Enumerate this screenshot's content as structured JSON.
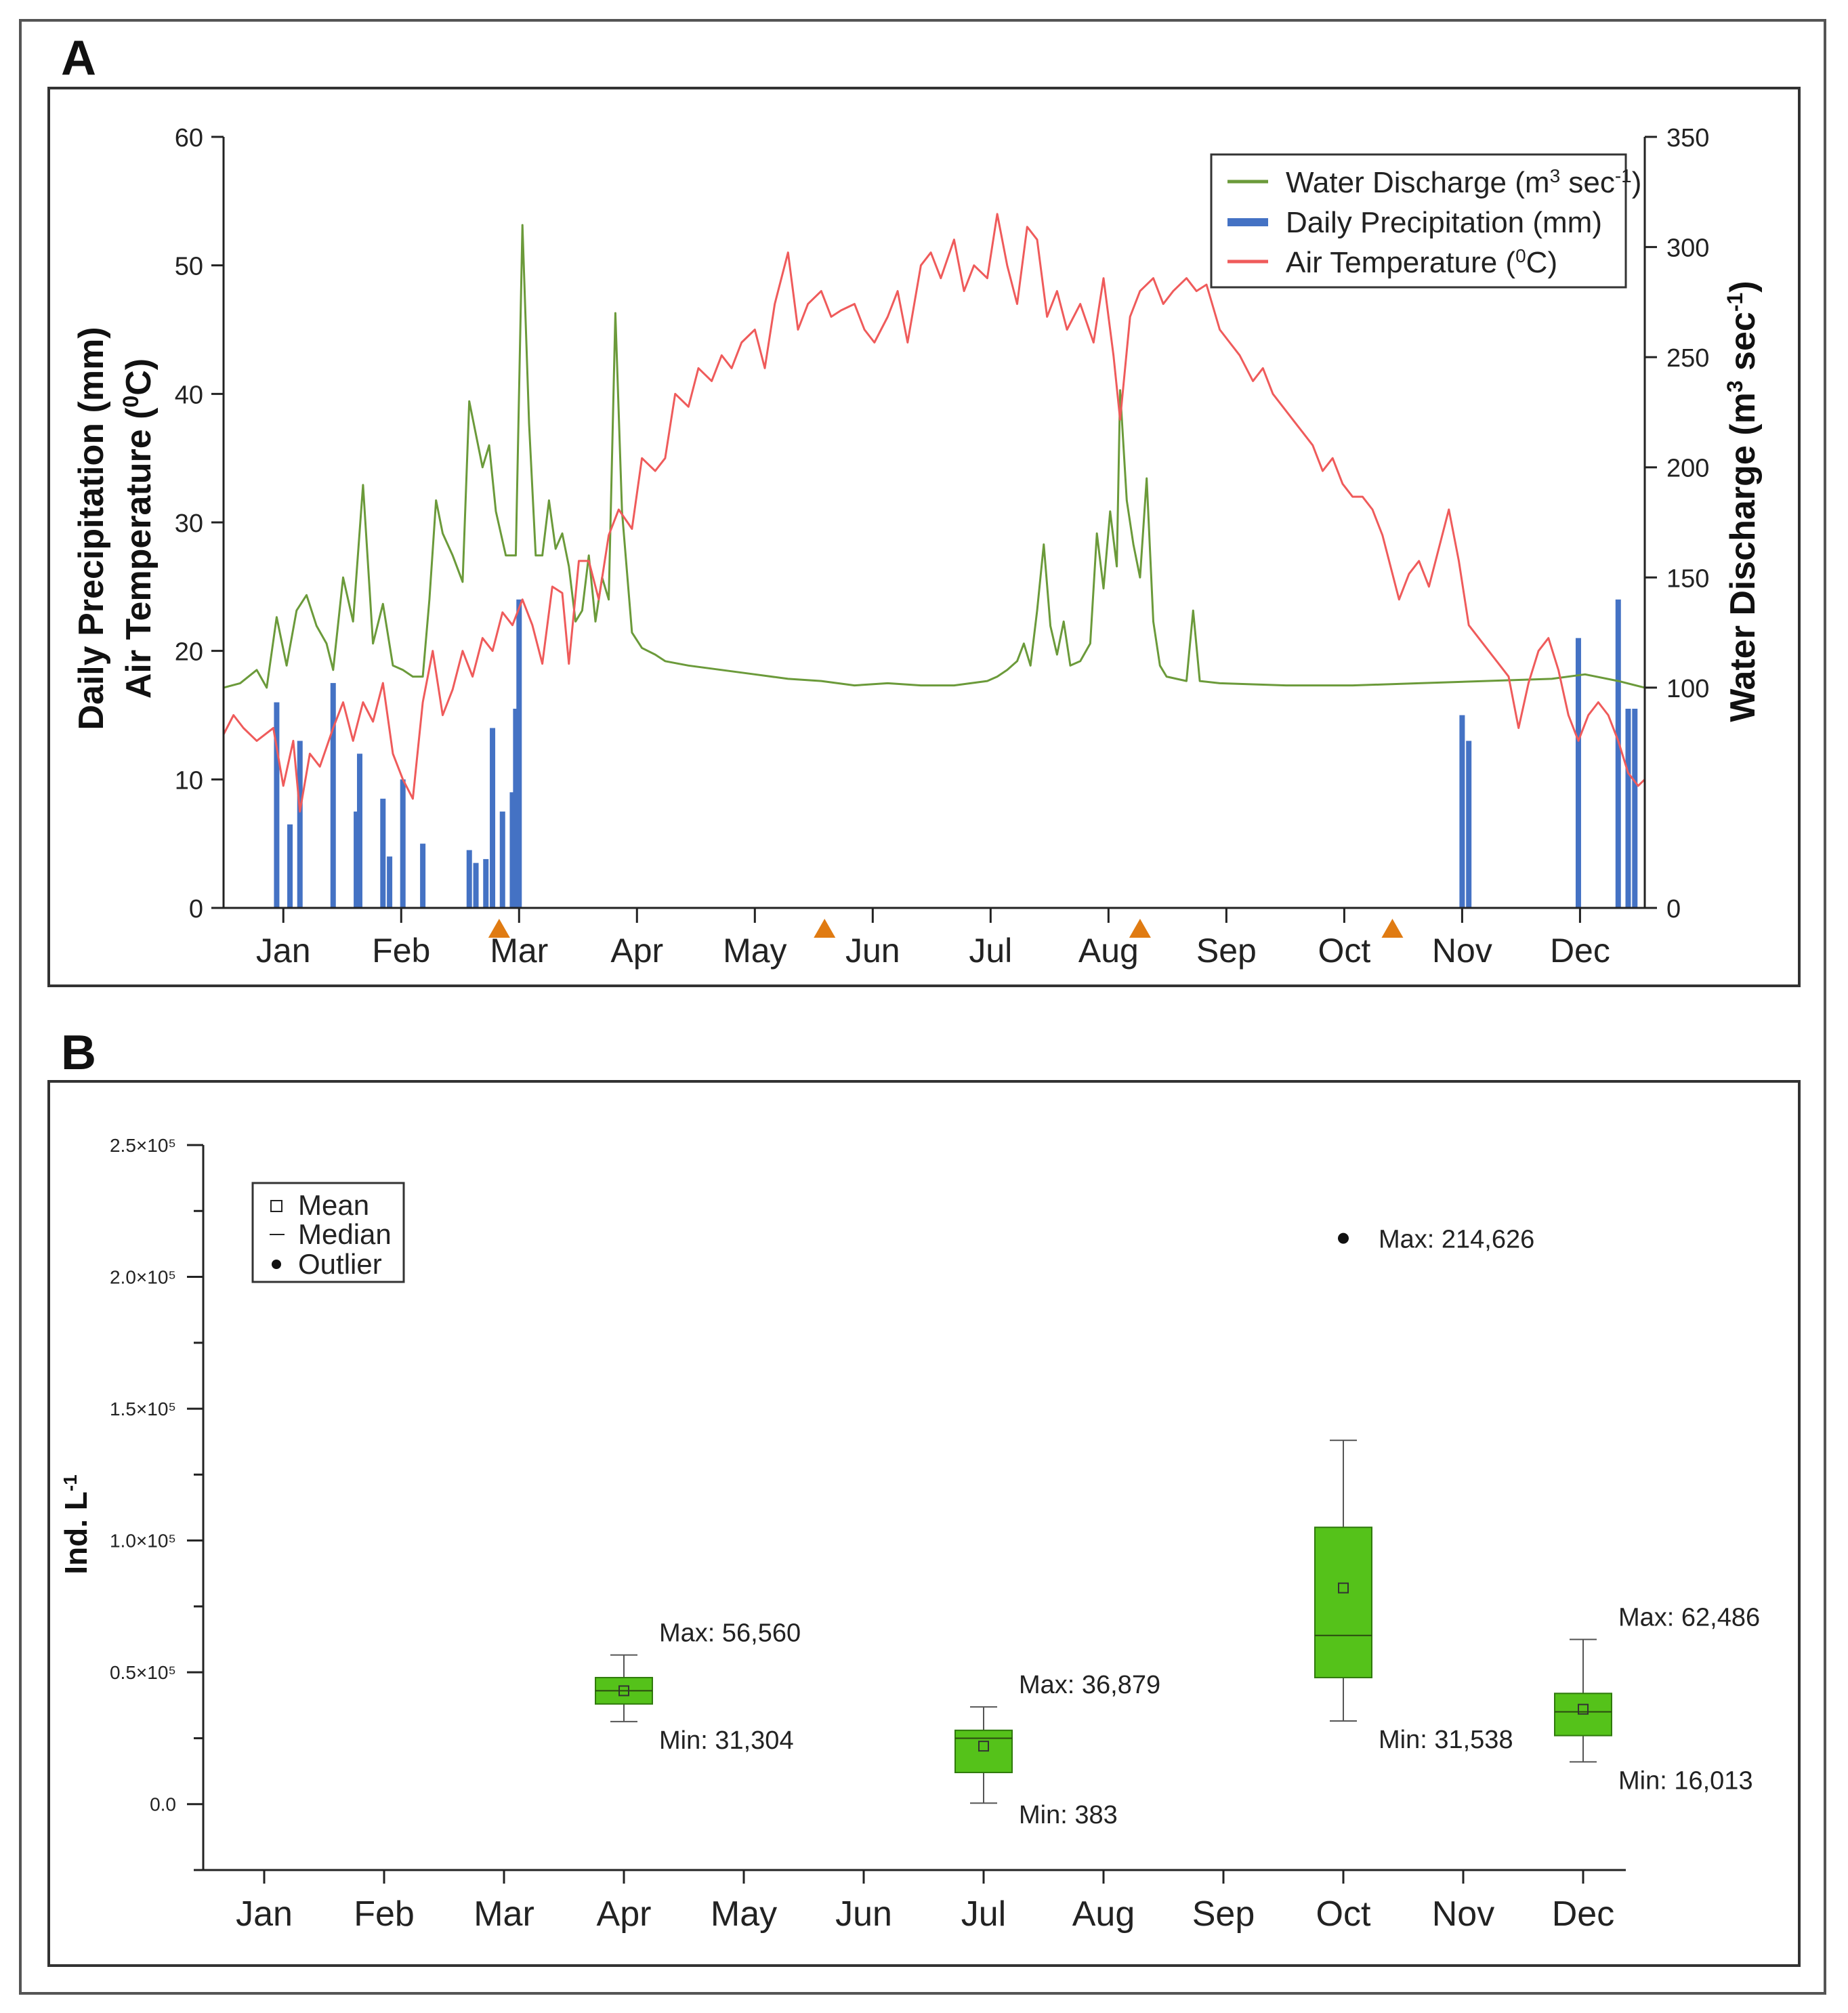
{
  "figure": {
    "panel_a_letter": "A",
    "panel_b_letter": "B"
  },
  "colors": {
    "discharge": "#6b9a3a",
    "precipitation": "#4472c4",
    "temperature": "#ef5b5b",
    "sampling_marker": "#e07b12",
    "box_fill": "#55c21a",
    "box_stroke": "#2f7a0c"
  },
  "chart_data": [
    {
      "panel": "A",
      "type": "line",
      "title": "",
      "y_left_label_line1": "Daily Precipitation (mm)",
      "y_left_label_line2": "Air Temperature (",
      "y_left_label_sup": "0",
      "y_left_label_tail": "C)",
      "y_left_range": [
        0,
        60
      ],
      "y_left_ticks": [
        0,
        10,
        20,
        30,
        40,
        50,
        60
      ],
      "y_right_label_main": "Water Discharge (m",
      "y_right_label_sup1": "3",
      "y_right_label_mid": " sec",
      "y_right_label_sup2": "-1",
      "y_right_label_tail": ")",
      "y_right_range": [
        0,
        350
      ],
      "y_right_ticks": [
        0,
        100,
        150,
        200,
        250,
        300,
        350
      ],
      "x_month_labels": [
        "Jan",
        "Feb",
        "Mar",
        "Apr",
        "May",
        "Jun",
        "Jul",
        "Aug",
        "Sep",
        "Oct",
        "Nov",
        "Dec"
      ],
      "legend": {
        "discharge_a": "Water Discharge (m",
        "discharge_sup1": "3",
        "discharge_b": " sec",
        "discharge_sup2": "-1",
        "discharge_c": ")",
        "precipitation": "Daily Precipitation (mm)",
        "temperature_a": "Air Temperature (",
        "temperature_sup": "0",
        "temperature_b": "C)"
      },
      "sampling_markers_day": [
        83,
        181,
        276,
        352
      ],
      "temperature_c": [
        [
          0,
          13.5
        ],
        [
          3,
          15
        ],
        [
          6,
          14
        ],
        [
          10,
          13
        ],
        [
          15,
          14
        ],
        [
          18,
          9.5
        ],
        [
          21,
          13
        ],
        [
          23,
          7.5
        ],
        [
          26,
          12
        ],
        [
          29,
          11
        ],
        [
          33,
          14
        ],
        [
          36,
          16
        ],
        [
          39,
          13
        ],
        [
          42,
          16
        ],
        [
          45,
          14.5
        ],
        [
          48,
          17.5
        ],
        [
          51,
          12
        ],
        [
          54,
          10
        ],
        [
          57,
          8.5
        ],
        [
          60,
          16
        ],
        [
          63,
          20
        ],
        [
          66,
          15
        ],
        [
          69,
          17
        ],
        [
          72,
          20
        ],
        [
          75,
          18
        ],
        [
          78,
          21
        ],
        [
          81,
          20
        ],
        [
          84,
          23
        ],
        [
          87,
          22
        ],
        [
          90,
          24
        ],
        [
          93,
          22
        ],
        [
          96,
          19
        ],
        [
          99,
          25
        ],
        [
          102,
          24.5
        ],
        [
          104,
          19
        ],
        [
          107,
          27
        ],
        [
          110,
          27
        ],
        [
          113,
          24
        ],
        [
          116,
          29
        ],
        [
          119,
          31
        ],
        [
          123,
          29.5
        ],
        [
          126,
          35
        ],
        [
          130,
          34
        ],
        [
          133,
          35
        ],
        [
          136,
          40
        ],
        [
          140,
          39
        ],
        [
          143,
          42
        ],
        [
          147,
          41
        ],
        [
          150,
          43
        ],
        [
          153,
          42
        ],
        [
          156,
          44
        ],
        [
          160,
          45
        ],
        [
          163,
          42
        ],
        [
          166,
          47
        ],
        [
          170,
          51
        ],
        [
          173,
          45
        ],
        [
          176,
          47
        ],
        [
          180,
          48
        ],
        [
          183,
          46
        ],
        [
          186,
          46.5
        ],
        [
          190,
          47
        ],
        [
          193,
          45
        ],
        [
          196,
          44
        ],
        [
          200,
          46
        ],
        [
          203,
          48
        ],
        [
          206,
          44
        ],
        [
          210,
          50
        ],
        [
          213,
          51
        ],
        [
          216,
          49
        ],
        [
          220,
          52
        ],
        [
          223,
          48
        ],
        [
          226,
          50
        ],
        [
          230,
          49
        ],
        [
          233,
          54
        ],
        [
          236,
          50
        ],
        [
          239,
          47
        ],
        [
          242,
          53
        ],
        [
          245,
          52
        ],
        [
          248,
          46
        ],
        [
          251,
          48
        ],
        [
          254,
          45
        ],
        [
          258,
          47
        ],
        [
          262,
          44
        ],
        [
          265,
          49
        ],
        [
          268,
          43
        ],
        [
          270,
          38
        ],
        [
          273,
          46
        ],
        [
          276,
          48
        ],
        [
          280,
          49
        ],
        [
          283,
          47
        ],
        [
          286,
          48
        ],
        [
          290,
          49
        ],
        [
          293,
          48
        ],
        [
          296,
          48.5
        ],
        [
          300,
          45
        ],
        [
          303,
          44
        ],
        [
          306,
          43
        ],
        [
          310,
          41
        ],
        [
          313,
          42
        ],
        [
          316,
          40
        ],
        [
          319,
          39
        ],
        [
          322,
          38
        ],
        [
          325,
          37
        ],
        [
          328,
          36
        ],
        [
          331,
          34
        ],
        [
          334,
          35
        ],
        [
          337,
          33
        ],
        [
          340,
          32
        ],
        [
          343,
          32
        ],
        [
          346,
          31
        ],
        [
          349,
          29
        ],
        [
          352,
          26
        ],
        [
          354,
          24
        ],
        [
          357,
          26
        ],
        [
          360,
          27
        ],
        [
          363,
          25
        ],
        [
          366,
          28
        ],
        [
          369,
          31
        ],
        [
          372,
          27
        ],
        [
          375,
          22
        ],
        [
          378,
          21
        ],
        [
          381,
          20
        ],
        [
          384,
          19
        ],
        [
          387,
          18
        ],
        [
          390,
          14
        ],
        [
          393,
          17.5
        ],
        [
          396,
          20
        ],
        [
          399,
          21
        ],
        [
          402,
          18.5
        ],
        [
          405,
          15
        ],
        [
          408,
          13
        ],
        [
          411,
          15
        ],
        [
          414,
          16
        ],
        [
          417,
          15
        ],
        [
          420,
          13
        ],
        [
          423,
          10.5
        ],
        [
          426,
          9.5
        ],
        [
          428,
          10
        ]
      ],
      "discharge_m3s": [
        [
          0,
          100
        ],
        [
          5,
          102
        ],
        [
          10,
          108
        ],
        [
          13,
          100
        ],
        [
          16,
          132
        ],
        [
          19,
          110
        ],
        [
          22,
          135
        ],
        [
          25,
          142
        ],
        [
          28,
          128
        ],
        [
          31,
          120
        ],
        [
          33,
          108
        ],
        [
          36,
          150
        ],
        [
          39,
          130
        ],
        [
          42,
          192
        ],
        [
          45,
          120
        ],
        [
          48,
          138
        ],
        [
          51,
          110
        ],
        [
          54,
          108
        ],
        [
          57,
          105
        ],
        [
          60,
          105
        ],
        [
          62,
          140
        ],
        [
          64,
          185
        ],
        [
          66,
          170
        ],
        [
          69,
          160
        ],
        [
          72,
          148
        ],
        [
          74,
          230
        ],
        [
          76,
          215
        ],
        [
          78,
          200
        ],
        [
          80,
          210
        ],
        [
          82,
          180
        ],
        [
          85,
          160
        ],
        [
          88,
          160
        ],
        [
          90,
          310
        ],
        [
          92,
          220
        ],
        [
          94,
          160
        ],
        [
          96,
          160
        ],
        [
          98,
          185
        ],
        [
          100,
          163
        ],
        [
          102,
          170
        ],
        [
          104,
          155
        ],
        [
          106,
          130
        ],
        [
          108,
          135
        ],
        [
          110,
          160
        ],
        [
          112,
          130
        ],
        [
          114,
          150
        ],
        [
          116,
          140
        ],
        [
          118,
          270
        ],
        [
          120,
          180
        ],
        [
          123,
          125
        ],
        [
          126,
          118
        ],
        [
          130,
          115
        ],
        [
          133,
          112
        ],
        [
          140,
          110
        ],
        [
          150,
          108
        ],
        [
          160,
          106
        ],
        [
          170,
          104
        ],
        [
          180,
          103
        ],
        [
          190,
          101
        ],
        [
          200,
          102
        ],
        [
          210,
          101
        ],
        [
          220,
          101
        ],
        [
          230,
          103
        ],
        [
          233,
          105
        ],
        [
          236,
          108
        ],
        [
          239,
          112
        ],
        [
          241,
          120
        ],
        [
          243,
          110
        ],
        [
          245,
          135
        ],
        [
          247,
          165
        ],
        [
          249,
          128
        ],
        [
          251,
          115
        ],
        [
          253,
          130
        ],
        [
          255,
          110
        ],
        [
          258,
          112
        ],
        [
          261,
          120
        ],
        [
          263,
          170
        ],
        [
          265,
          145
        ],
        [
          267,
          180
        ],
        [
          269,
          155
        ],
        [
          270,
          235
        ],
        [
          272,
          185
        ],
        [
          274,
          165
        ],
        [
          276,
          150
        ],
        [
          278,
          195
        ],
        [
          280,
          130
        ],
        [
          282,
          110
        ],
        [
          284,
          105
        ],
        [
          290,
          103
        ],
        [
          292,
          135
        ],
        [
          294,
          103
        ],
        [
          300,
          102
        ],
        [
          320,
          101
        ],
        [
          340,
          101
        ],
        [
          360,
          102
        ],
        [
          380,
          103
        ],
        [
          400,
          104
        ],
        [
          410,
          106
        ],
        [
          420,
          103
        ],
        [
          428,
          100
        ]
      ],
      "precipitation_mm": [
        [
          16,
          16
        ],
        [
          20,
          6.5
        ],
        [
          23,
          13
        ],
        [
          33,
          17.5
        ],
        [
          40,
          7.5
        ],
        [
          41,
          12
        ],
        [
          48,
          8.5
        ],
        [
          50,
          4
        ],
        [
          54,
          10
        ],
        [
          60,
          5
        ],
        [
          74,
          4.5
        ],
        [
          76,
          3.5
        ],
        [
          79,
          3.8
        ],
        [
          81,
          14
        ],
        [
          84,
          7.5
        ],
        [
          87,
          9
        ],
        [
          88,
          15.5
        ],
        [
          89,
          24
        ],
        [
          373,
          15
        ],
        [
          375,
          13
        ],
        [
          408,
          21
        ],
        [
          420,
          24
        ],
        [
          423,
          15.5
        ],
        [
          425,
          15.5
        ]
      ]
    },
    {
      "panel": "B",
      "type": "box",
      "title": "",
      "ylabel_main": "Ind. L",
      "ylabel_sup": "-1",
      "y_range": [
        -25000,
        250000
      ],
      "y_ticks": [
        {
          "value": 0,
          "label": "0.0"
        },
        {
          "value": 50000,
          "label": "0.5×10⁵"
        },
        {
          "value": 100000,
          "label": "1.0×10⁵"
        },
        {
          "value": 150000,
          "label": "1.5×10⁵"
        },
        {
          "value": 200000,
          "label": "2.0×10⁵"
        },
        {
          "value": 250000,
          "label": "2.5×10⁵"
        }
      ],
      "categories": [
        "Jan",
        "Feb",
        "Mar",
        "Apr",
        "May",
        "Jun",
        "Jul",
        "Aug",
        "Sep",
        "Oct",
        "Nov",
        "Dec"
      ],
      "legend": {
        "mean": "Mean",
        "median": "Median",
        "outlier": "Outlier"
      },
      "boxes": [
        {
          "month": "Apr",
          "min": 31304,
          "q1": 38000,
          "median": 43000,
          "q3": 48000,
          "max": 56560,
          "mean": 43000,
          "max_label": "Max: 56,560",
          "min_label": "Min: 31,304"
        },
        {
          "month": "Jul",
          "min": 383,
          "q1": 12000,
          "median": 25000,
          "q3": 28000,
          "max": 36879,
          "mean": 22000,
          "max_label": "Max: 36,879",
          "min_label": "Min: 383"
        },
        {
          "month": "Oct",
          "min": 31538,
          "q1": 48000,
          "median": 64000,
          "q3": 105000,
          "max": 138000,
          "mean": 82000,
          "outlier": 214626,
          "max_label": "Max: 214,626",
          "min_label": "Min: 31,538"
        },
        {
          "month": "Dec",
          "min": 16013,
          "q1": 26000,
          "median": 35000,
          "q3": 42000,
          "max": 62486,
          "mean": 36000,
          "max_label": "Max: 62,486",
          "min_label": "Min: 16,013"
        }
      ]
    }
  ]
}
